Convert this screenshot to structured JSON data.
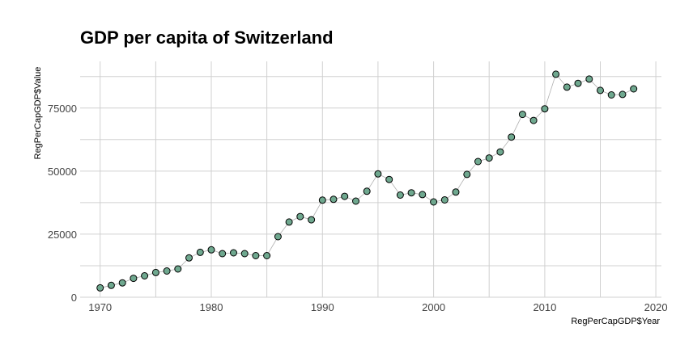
{
  "chart_data": {
    "type": "scatter",
    "title": "GDP per capita of Switzerland",
    "xlabel": "RegPerCapGDP$Year",
    "ylabel": "RegPerCapGDP$Value",
    "xlim": [
      1968.2,
      2020.5
    ],
    "ylim": [
      0,
      93500
    ],
    "x_ticks": [
      1970,
      1980,
      1990,
      2000,
      2010,
      2020
    ],
    "y_ticks": [
      0,
      25000,
      50000,
      75000
    ],
    "x_tick_labels": [
      "1970",
      "1980",
      "1990",
      "2000",
      "2010",
      "2020"
    ],
    "y_tick_labels": [
      "0",
      "25000",
      "50000",
      "75000"
    ],
    "grid": true,
    "connect_line": true,
    "point_color": "#6fa88f",
    "point_stroke": "#000000",
    "line_color": "#b0b0b0",
    "grid_color": "#d0d0d0",
    "x": [
      1970,
      1971,
      1972,
      1973,
      1974,
      1975,
      1976,
      1977,
      1978,
      1979,
      1980,
      1981,
      1982,
      1983,
      1984,
      1985,
      1986,
      1987,
      1988,
      1989,
      1990,
      1991,
      1992,
      1993,
      1994,
      1995,
      1996,
      1997,
      1998,
      1999,
      2000,
      2001,
      2002,
      2003,
      2004,
      2005,
      2006,
      2007,
      2008,
      2009,
      2010,
      2011,
      2012,
      2013,
      2014,
      2015,
      2016,
      2017,
      2018
    ],
    "y": [
      3700,
      4700,
      5700,
      7500,
      8500,
      9800,
      10400,
      11200,
      15600,
      17800,
      18800,
      17300,
      17600,
      17300,
      16500,
      16500,
      24000,
      29800,
      32000,
      30700,
      38500,
      38800,
      40000,
      38100,
      42000,
      48900,
      46700,
      40500,
      41400,
      40700,
      37800,
      38600,
      41700,
      48700,
      53800,
      55200,
      57600,
      63500,
      72500,
      70100,
      74700,
      88400,
      83300,
      84800,
      86500,
      82000,
      80200,
      80400,
      82600
    ]
  }
}
